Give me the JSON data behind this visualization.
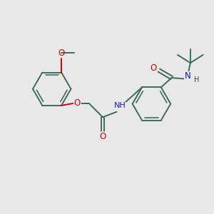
{
  "bg_color": "#e8e8e8",
  "bond_color": "#3d6b60",
  "o_color": "#dd0000",
  "n_color": "#1a1aaa",
  "h_color": "#444444",
  "bond_width": 1.4,
  "font_size": 8.5,
  "fig_size": [
    3.0,
    3.0
  ],
  "dpi": 100,
  "xlim": [
    0,
    10
  ],
  "ylim": [
    0,
    10
  ]
}
